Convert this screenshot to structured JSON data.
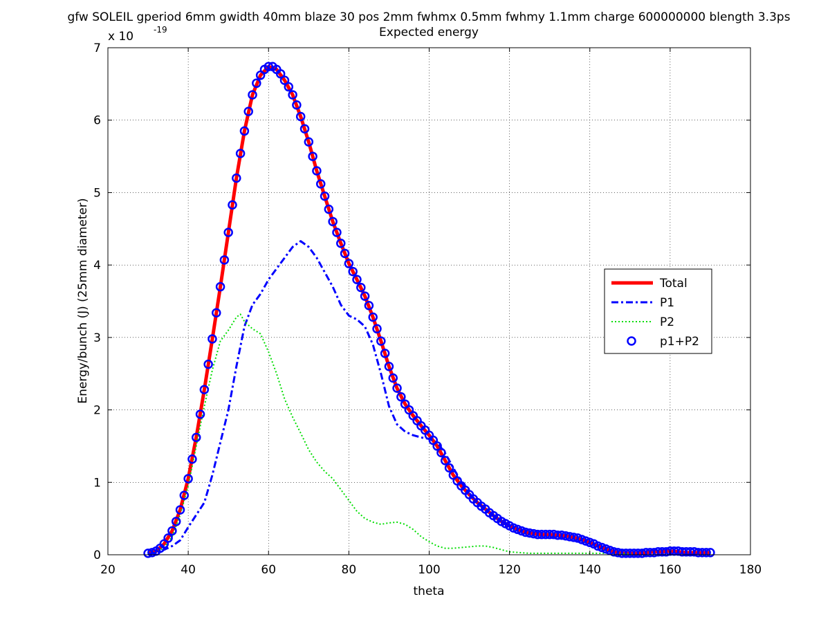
{
  "chart_data": {
    "type": "line",
    "title": "gfw SOLEIL gperiod 6mm gwidth 40mm blaze 30 pos 2mm fwhmx 0.5mm fwhmy 1.1mm charge 600000000 blength 3.3ps",
    "subtitle": "Expected energy",
    "xlabel": "theta",
    "ylabel": "Energy/bunch (J)  (25mm diameter)",
    "y_multiplier_base": "x 10",
    "y_multiplier_exp": "-19",
    "xlim": [
      20,
      180
    ],
    "ylim": [
      0,
      7
    ],
    "x_ticks": [
      20,
      40,
      60,
      80,
      100,
      120,
      140,
      160,
      180
    ],
    "y_ticks": [
      0,
      1,
      2,
      3,
      4,
      5,
      6,
      7
    ],
    "grid": true,
    "legend_position": "right",
    "series": [
      {
        "name": "Total",
        "color": "#ff0000",
        "style": "solid-thick",
        "x": [
          30,
          32,
          34,
          36,
          38,
          40,
          42,
          44,
          46,
          48,
          50,
          52,
          54,
          56,
          58,
          60,
          62,
          64,
          66,
          68,
          70,
          72,
          74,
          76,
          78,
          80,
          82,
          84,
          86,
          88,
          90,
          92,
          94,
          96,
          98,
          100,
          102,
          104,
          106,
          108,
          110,
          112,
          114,
          116,
          118,
          120,
          122,
          124,
          126,
          128,
          130,
          132,
          134,
          136,
          138,
          140,
          142,
          144,
          146,
          148,
          150,
          152,
          154,
          156,
          158,
          160,
          162,
          164,
          166,
          168,
          170
        ],
        "y": [
          0.02,
          0.05,
          0.15,
          0.33,
          0.62,
          1.05,
          1.62,
          2.28,
          2.98,
          3.7,
          4.45,
          5.2,
          5.85,
          6.35,
          6.62,
          6.74,
          6.7,
          6.55,
          6.35,
          6.05,
          5.7,
          5.3,
          4.95,
          4.6,
          4.3,
          4.02,
          3.8,
          3.57,
          3.28,
          2.95,
          2.6,
          2.3,
          2.08,
          1.92,
          1.78,
          1.65,
          1.5,
          1.3,
          1.1,
          0.95,
          0.83,
          0.72,
          0.63,
          0.54,
          0.46,
          0.4,
          0.35,
          0.31,
          0.29,
          0.28,
          0.28,
          0.27,
          0.26,
          0.24,
          0.21,
          0.17,
          0.12,
          0.08,
          0.04,
          0.02,
          0.02,
          0.02,
          0.03,
          0.04,
          0.04,
          0.05,
          0.04,
          0.03,
          0.03,
          0.03,
          0.03
        ]
      },
      {
        "name": "P1",
        "color": "#0000ff",
        "style": "dashdot",
        "x": [
          30,
          32,
          34,
          36,
          38,
          40,
          42,
          44,
          46,
          48,
          50,
          52,
          54,
          56,
          58,
          60,
          62,
          64,
          66,
          68,
          70,
          72,
          74,
          76,
          78,
          80,
          82,
          84,
          86,
          88,
          90,
          92,
          94,
          96,
          98,
          100,
          102,
          104,
          106,
          108,
          110,
          112,
          114,
          116,
          118,
          120
        ],
        "y": [
          0.01,
          0.03,
          0.07,
          0.12,
          0.2,
          0.38,
          0.55,
          0.72,
          1.1,
          1.55,
          2.0,
          2.6,
          3.15,
          3.45,
          3.6,
          3.8,
          3.95,
          4.1,
          4.25,
          4.33,
          4.25,
          4.1,
          3.9,
          3.7,
          3.45,
          3.3,
          3.25,
          3.15,
          2.9,
          2.5,
          2.05,
          1.8,
          1.7,
          1.65,
          1.62,
          1.6,
          1.55,
          1.4,
          1.2,
          1.0,
          0.85,
          0.72,
          0.62,
          0.54,
          0.46,
          0.4
        ]
      },
      {
        "name": "P2",
        "color": "#00dd00",
        "style": "dotted",
        "x": [
          30,
          32,
          34,
          36,
          38,
          40,
          42,
          44,
          46,
          48,
          50,
          52,
          53,
          54,
          56,
          58,
          60,
          62,
          64,
          66,
          68,
          70,
          72,
          74,
          76,
          78,
          80,
          82,
          84,
          86,
          88,
          90,
          92,
          94,
          96,
          98,
          100,
          102,
          104,
          106,
          108,
          110,
          112,
          114,
          116,
          118,
          120,
          125,
          130,
          135,
          140,
          145,
          150,
          152
        ],
        "y": [
          0.01,
          0.03,
          0.1,
          0.25,
          0.55,
          0.95,
          1.5,
          2.05,
          2.55,
          2.95,
          3.1,
          3.28,
          3.32,
          3.22,
          3.12,
          3.05,
          2.8,
          2.5,
          2.15,
          1.9,
          1.68,
          1.45,
          1.28,
          1.15,
          1.05,
          0.9,
          0.75,
          0.6,
          0.5,
          0.45,
          0.42,
          0.44,
          0.45,
          0.42,
          0.35,
          0.25,
          0.18,
          0.12,
          0.09,
          0.09,
          0.1,
          0.11,
          0.12,
          0.12,
          0.1,
          0.07,
          0.04,
          0.02,
          0.02,
          0.02,
          0.02,
          0.02,
          0.01,
          0.01
        ]
      },
      {
        "name": "p1+P2",
        "color": "#0000ff",
        "style": "circles",
        "x": [
          30,
          31,
          32,
          33,
          34,
          35,
          36,
          37,
          38,
          39,
          40,
          41,
          42,
          43,
          44,
          45,
          46,
          47,
          48,
          49,
          50,
          51,
          52,
          53,
          54,
          55,
          56,
          57,
          58,
          59,
          60,
          61,
          62,
          63,
          64,
          65,
          66,
          67,
          68,
          69,
          70,
          71,
          72,
          73,
          74,
          75,
          76,
          77,
          78,
          79,
          80,
          81,
          82,
          83,
          84,
          85,
          86,
          87,
          88,
          89,
          90,
          91,
          92,
          93,
          94,
          95,
          96,
          97,
          98,
          99,
          100,
          101,
          102,
          103,
          104,
          105,
          106,
          107,
          108,
          109,
          110,
          111,
          112,
          113,
          114,
          115,
          116,
          117,
          118,
          119,
          120,
          121,
          122,
          123,
          124,
          125,
          126,
          127,
          128,
          129,
          130,
          131,
          132,
          133,
          134,
          135,
          136,
          137,
          138,
          139,
          140,
          141,
          142,
          143,
          144,
          145,
          146,
          147,
          148,
          149,
          150,
          151,
          152,
          153,
          154,
          155,
          156,
          157,
          158,
          159,
          160,
          161,
          162,
          163,
          164,
          165,
          166,
          167,
          168,
          169,
          170
        ],
        "y": [
          0.02,
          0.03,
          0.05,
          0.09,
          0.15,
          0.23,
          0.33,
          0.46,
          0.62,
          0.82,
          1.05,
          1.32,
          1.62,
          1.94,
          2.28,
          2.63,
          2.98,
          3.34,
          3.7,
          4.07,
          4.45,
          4.83,
          5.2,
          5.54,
          5.85,
          6.12,
          6.35,
          6.51,
          6.62,
          6.7,
          6.74,
          6.74,
          6.7,
          6.64,
          6.55,
          6.46,
          6.35,
          6.21,
          6.05,
          5.88,
          5.7,
          5.5,
          5.3,
          5.12,
          4.95,
          4.77,
          4.6,
          4.45,
          4.3,
          4.16,
          4.02,
          3.91,
          3.8,
          3.69,
          3.57,
          3.44,
          3.28,
          3.12,
          2.95,
          2.78,
          2.6,
          2.44,
          2.3,
          2.18,
          2.08,
          2.0,
          1.92,
          1.85,
          1.78,
          1.72,
          1.65,
          1.58,
          1.5,
          1.41,
          1.3,
          1.2,
          1.1,
          1.02,
          0.95,
          0.89,
          0.83,
          0.77,
          0.72,
          0.67,
          0.63,
          0.58,
          0.54,
          0.5,
          0.46,
          0.43,
          0.4,
          0.37,
          0.35,
          0.33,
          0.31,
          0.3,
          0.29,
          0.28,
          0.28,
          0.28,
          0.28,
          0.28,
          0.27,
          0.27,
          0.26,
          0.25,
          0.24,
          0.23,
          0.21,
          0.19,
          0.17,
          0.15,
          0.12,
          0.1,
          0.08,
          0.06,
          0.04,
          0.03,
          0.02,
          0.02,
          0.02,
          0.02,
          0.02,
          0.02,
          0.03,
          0.03,
          0.03,
          0.04,
          0.04,
          0.04,
          0.05,
          0.05,
          0.05,
          0.04,
          0.04,
          0.04,
          0.04,
          0.03,
          0.03,
          0.03,
          0.03
        ]
      }
    ]
  }
}
